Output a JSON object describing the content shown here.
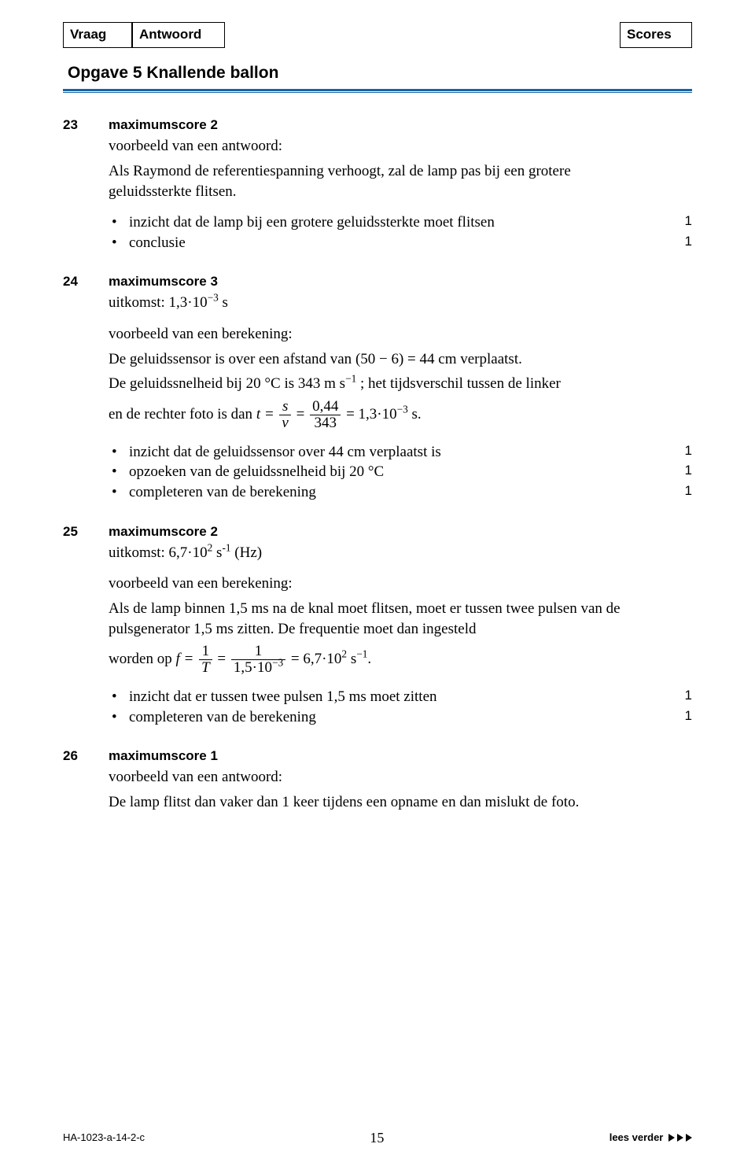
{
  "header": {
    "vraag": "Vraag",
    "antwoord": "Antwoord",
    "scores": "Scores"
  },
  "opgave_title": "Opgave 5  Knallende ballon",
  "questions": {
    "q23": {
      "num": "23",
      "maxscore": "maximumscore 2",
      "intro": "voorbeeld van een antwoord:",
      "body": "Als Raymond de referentiespanning verhoogt, zal de lamp pas bij een grotere geluidssterkte flitsen.",
      "items": [
        {
          "text": "inzicht dat de lamp bij een grotere geluidssterkte moet flitsen",
          "score": "1"
        },
        {
          "text": "conclusie",
          "score": "1"
        }
      ]
    },
    "q24": {
      "num": "24",
      "maxscore": "maximumscore 3",
      "uitkomst_label": "uitkomst:",
      "uitkomst_val": "1,3·10",
      "uitkomst_exp": "−3",
      "uitkomst_unit": " s",
      "berek_label": "voorbeeld van een berekening:",
      "line1a": "De geluidssensor is over een afstand van ",
      "line1b": "(50 − 6) = 44 cm",
      "line1c": " verplaatst.",
      "line2a": "De geluidssnelheid bij ",
      "line2b": "20 °C",
      "line2c": " is ",
      "line2d": "343 m s",
      "line2e_exp": "−1",
      "line2f": " ; het tijdsverschil tussen de linker",
      "line3a": "en de rechter foto is dan ",
      "frac1_num": "s",
      "frac1_den": "v",
      "frac2_num": "0,44",
      "frac2_den": "343",
      "result_val": "1,3·10",
      "result_exp": "−3",
      "result_unit": " s.",
      "t_eq": "t =",
      "eq_eq": " = ",
      "items": [
        {
          "text": "inzicht dat de geluidssensor over 44 cm verplaatst is",
          "score": "1"
        },
        {
          "text": "opzoeken van de geluidssnelheid bij 20 °C",
          "score": "1"
        },
        {
          "text": "completeren van de berekening",
          "score": "1"
        }
      ]
    },
    "q25": {
      "num": "25",
      "maxscore": "maximumscore 2",
      "uitkomst_label": "uitkomst:",
      "uitkomst_val": "6,7·10",
      "uitkomst_exp": "2",
      "uitkomst_unit_a": " s",
      "uitkomst_unit_exp": "-1",
      "uitkomst_unit_b": " (Hz)",
      "berek_label": "voorbeeld van een berekening:",
      "para": "Als de lamp binnen 1,5 ms na de knal moet flitsen, moet er tussen twee pulsen van de pulsgenerator 1,5 ms zitten. De frequentie moet dan ingesteld",
      "line_w": "worden op ",
      "f_eq": "f =",
      "frac1_num": "1",
      "frac1_den": "T",
      "frac2_num": "1",
      "frac2_den_a": "1,5·10",
      "frac2_den_exp": "−3",
      "eq_eq": " = ",
      "result_val": "6,7·10",
      "result_exp": "2",
      "result_unit_a": " s",
      "result_unit_exp": "−1",
      "result_unit_b": ".",
      "items": [
        {
          "text": "inzicht dat er tussen twee pulsen 1,5 ms moet zitten",
          "score": "1"
        },
        {
          "text": "completeren van de berekening",
          "score": "1"
        }
      ]
    },
    "q26": {
      "num": "26",
      "maxscore": "maximumscore 1",
      "intro": "voorbeeld van een antwoord:",
      "body": "De lamp flitst dan vaker dan 1 keer tijdens een opname en dan mislukt de foto."
    }
  },
  "footer": {
    "code": "HA-1023-a-14-2-c",
    "page": "15",
    "lees": "lees verder "
  },
  "colors": {
    "rule": "#1765a5"
  }
}
